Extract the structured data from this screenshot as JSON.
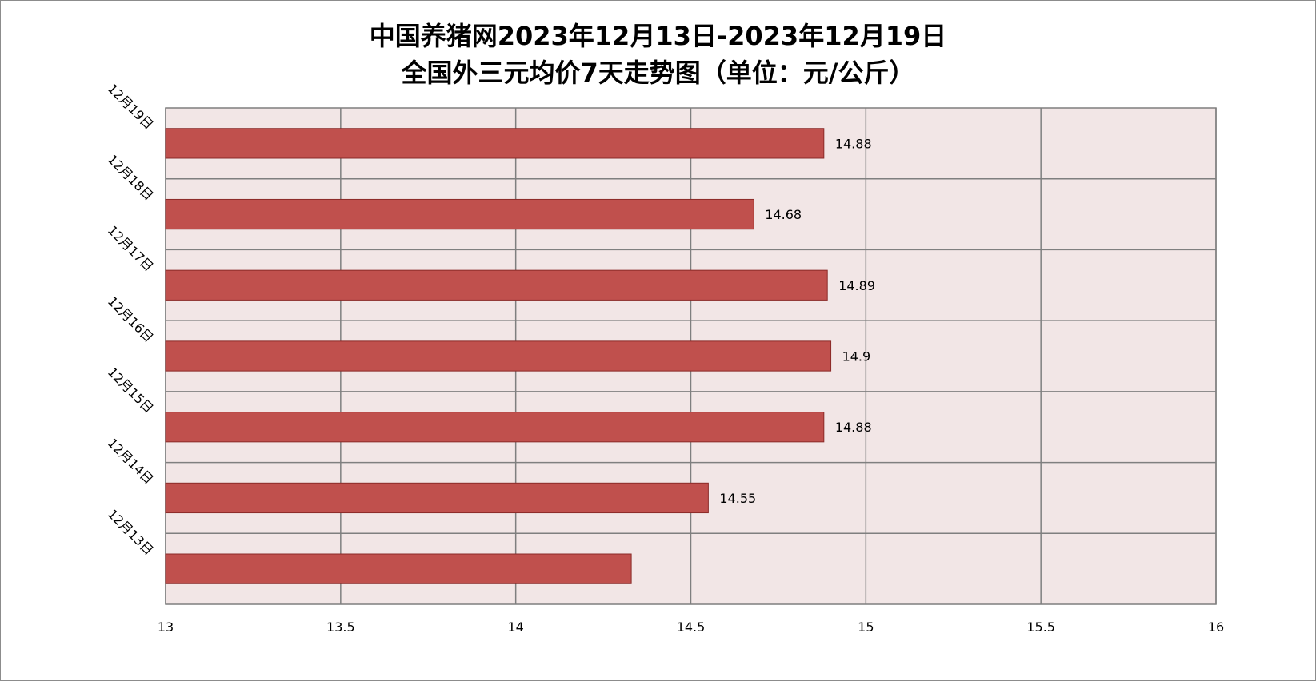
{
  "chart_data": {
    "type": "bar",
    "orientation": "horizontal",
    "title": [
      "中国养猪网2023年12月13日-2023年12月19日",
      "全国外三元均价7天走势图（单位：元/公斤）"
    ],
    "categories": [
      "12月13日",
      "12月14日",
      "12月15日",
      "12月16日",
      "12月17日",
      "12月18日",
      "12月19日"
    ],
    "values": [
      14.33,
      14.55,
      14.88,
      14.9,
      14.89,
      14.68,
      14.88
    ],
    "data_labels": [
      "",
      "14.55",
      "14.88",
      "14.9",
      "14.89",
      "14.68",
      "14.88"
    ],
    "xlim": [
      13,
      16
    ],
    "xticks": [
      "13",
      "13.5",
      "14",
      "14.5",
      "15",
      "15.5",
      "16"
    ],
    "xtick_values": [
      13,
      13.5,
      14,
      14.5,
      15,
      15.5,
      16
    ],
    "xlabel": "",
    "ylabel": "",
    "grid": true,
    "legend": "none",
    "colors": {
      "bar": "#c0504d",
      "bar_edge": "#8b2a28",
      "plot_bg": "#f2e6e6",
      "grid": "#7f7f7f"
    }
  }
}
